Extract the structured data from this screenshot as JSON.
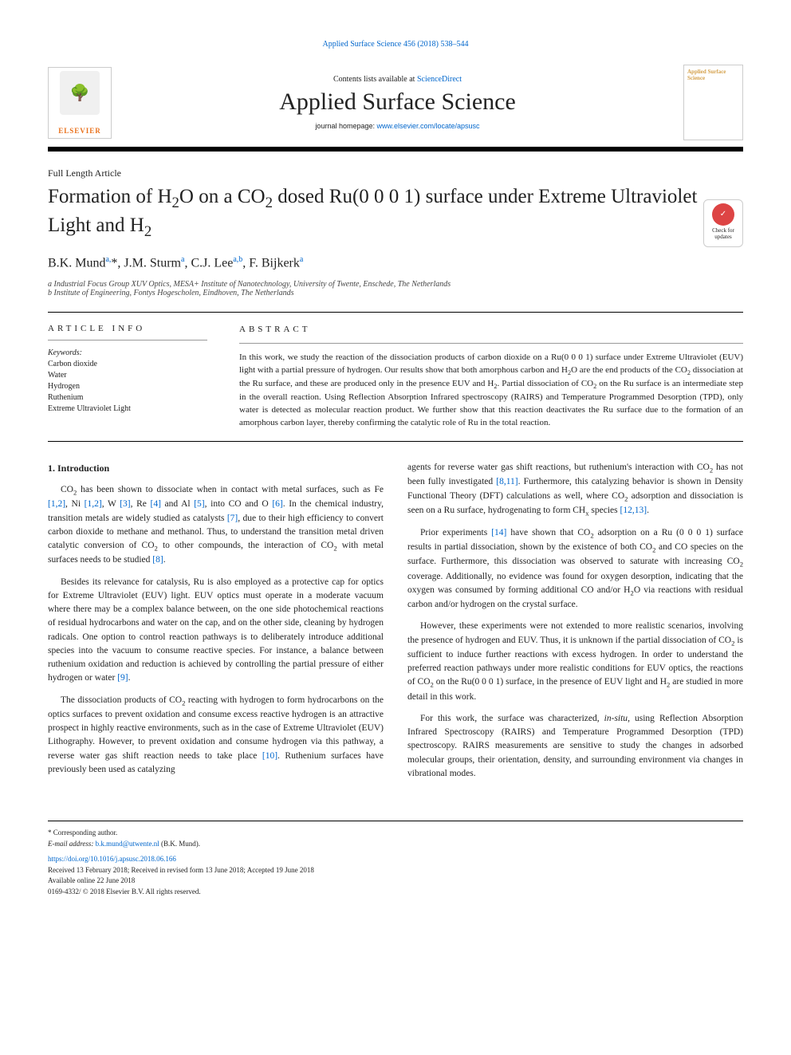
{
  "top_citation": "Applied Surface Science 456 (2018) 538–544",
  "header": {
    "contents_prefix": "Contents lists available at ",
    "contents_link": "ScienceDirect",
    "journal_name": "Applied Surface Science",
    "homepage_prefix": "journal homepage: ",
    "homepage_url": "www.elsevier.com/locate/apsusc",
    "publisher": "ELSEVIER",
    "cover_title": "Applied Surface Science"
  },
  "article_type": "Full Length Article",
  "title_html": "Formation of H<sub>2</sub>O on a CO<sub>2</sub> dosed Ru(0 0 0 1) surface under Extreme Ultraviolet Light and H<sub>2</sub>",
  "authors_html": "B.K. Mund<sup>a,</sup>*, J.M. Sturm<sup>a</sup>, C.J. Lee<sup>a,b</sup>, F. Bijkerk<sup>a</sup>",
  "affiliations": [
    "a Industrial Focus Group XUV Optics, MESA+ Institute of Nanotechnology, University of Twente, Enschede, The Netherlands",
    "b Institute of Engineering, Fontys Hogescholen, Eindhoven, The Netherlands"
  ],
  "check_badge": "Check for updates",
  "info": {
    "heading": "ARTICLE INFO",
    "kw_label": "Keywords:",
    "keywords": [
      "Carbon dioxide",
      "Water",
      "Hydrogen",
      "Ruthenium",
      "Extreme Ultraviolet Light"
    ]
  },
  "abstract": {
    "heading": "ABSTRACT",
    "text_html": "In this work, we study the reaction of the dissociation products of carbon dioxide on a Ru(0 0 0 1) surface under Extreme Ultraviolet (EUV) light with a partial pressure of hydrogen. Our results show that both amorphous carbon and H<sub>2</sub>O are the end products of the CO<sub>2</sub> dissociation at the Ru surface, and these are produced only in the presence EUV and H<sub>2</sub>. Partial dissociation of CO<sub>2</sub> on the Ru surface is an intermediate step in the overall reaction. Using Reflection Absorption Infrared spectroscopy (RAIRS) and Temperature Programmed Desorption (TPD), only water is detected as molecular reaction product. We further show that this reaction deactivates the Ru surface due to the formation of an amorphous carbon layer, thereby confirming the catalytic role of Ru in the total reaction."
  },
  "section1_heading": "1. Introduction",
  "col_left": [
    "CO<sub>2</sub> has been shown to dissociate when in contact with metal surfaces, such as Fe <a>[1,2]</a>, Ni <a>[1,2]</a>, W <a>[3]</a>, Re <a>[4]</a> and Al <a>[5]</a>, into CO and O <a>[6]</a>. In the chemical industry, transition metals are widely studied as catalysts <a>[7]</a>, due to their high efficiency to convert carbon dioxide to methane and methanol. Thus, to understand the transition metal driven catalytic conversion of CO<sub>2</sub> to other compounds, the interaction of CO<sub>2</sub> with metal surfaces needs to be studied <a>[8]</a>.",
    "Besides its relevance for catalysis, Ru is also employed as a protective cap for optics for Extreme Ultraviolet (EUV) light. EUV optics must operate in a moderate vacuum where there may be a complex balance between, on the one side photochemical reactions of residual hydrocarbons and water on the cap, and on the other side, cleaning by hydrogen radicals. One option to control reaction pathways is to deliberately introduce additional species into the vacuum to consume reactive species. For instance, a balance between ruthenium oxidation and reduction is achieved by controlling the partial pressure of either hydrogen or water <a>[9]</a>.",
    "The dissociation products of CO<sub>2</sub> reacting with hydrogen to form hydrocarbons on the optics surfaces to prevent oxidation and consume excess reactive hydrogen is an attractive prospect in highly reactive environments, such as in the case of Extreme Ultraviolet (EUV) Lithography. However, to prevent oxidation and consume hydrogen via this pathway, a reverse water gas shift reaction needs to take place <a>[10]</a>. Ruthenium surfaces have previously been used as catalyzing"
  ],
  "col_right": [
    "agents for reverse water gas shift reactions, but ruthenium's interaction with CO<sub>2</sub> has not been fully investigated <a>[8,11]</a>. Furthermore, this catalyzing behavior is shown in Density Functional Theory (DFT) calculations as well, where CO<sub>2</sub> adsorption and dissociation is seen on a Ru surface, hydrogenating to form CH<sub>x</sub> species <a>[12,13]</a>.",
    "Prior experiments <a>[14]</a> have shown that CO<sub>2</sub> adsorption on a Ru (0 0 0 1) surface results in partial dissociation, shown by the existence of both CO<sub>2</sub> and CO species on the surface. Furthermore, this dissociation was observed to saturate with increasing CO<sub>2</sub> coverage. Additionally, no evidence was found for oxygen desorption, indicating that the oxygen was consumed by forming additional CO and/or H<sub>2</sub>O via reactions with residual carbon and/or hydrogen on the crystal surface.",
    "However, these experiments were not extended to more realistic scenarios, involving the presence of hydrogen and EUV. Thus, it is unknown if the partial dissociation of CO<sub>2</sub> is sufficient to induce further reactions with excess hydrogen. In order to understand the preferred reaction pathways under more realistic conditions for EUV optics, the reactions of CO<sub>2</sub> on the Ru(0 0 0 1) surface, in the presence of EUV light and H<sub>2</sub> are studied in more detail in this work.",
    "For this work, the surface was characterized, <i>in-situ</i>, using Reflection Absorption Infrared Spectroscopy (RAIRS) and Temperature Programmed Desorption (TPD) spectroscopy. RAIRS measurements are sensitive to study the changes in adsorbed molecular groups, their orientation, density, and surrounding environment via changes in vibrational modes."
  ],
  "footer": {
    "corresp": "* Corresponding author.",
    "email_label": "E-mail address: ",
    "email": "b.k.mund@utwente.nl",
    "email_suffix": " (B.K. Mund).",
    "doi": "https://doi.org/10.1016/j.apsusc.2018.06.166",
    "received": "Received 13 February 2018; Received in revised form 13 June 2018; Accepted 19 June 2018",
    "available": "Available online 22 June 2018",
    "copyright": "0169-4332/ © 2018 Elsevier B.V. All rights reserved."
  },
  "colors": {
    "link": "#0066cc",
    "elsevier_orange": "#e9711c",
    "rule": "#000000",
    "cover_text": "#d4a04a"
  },
  "typography": {
    "body_pt": 11.5,
    "title_pt": 25,
    "journal_name_pt": 30,
    "abstract_pt": 11,
    "footer_pt": 9
  }
}
